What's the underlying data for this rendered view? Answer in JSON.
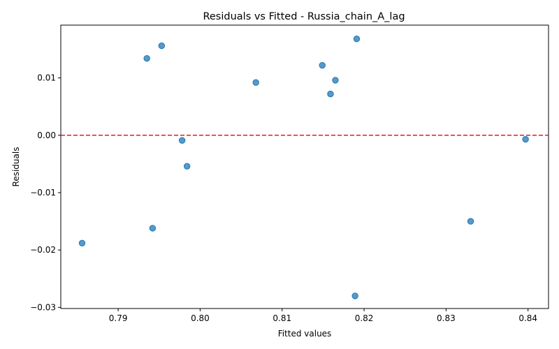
{
  "chart_data": {
    "type": "scatter",
    "title": "Residuals vs Fitted - Russia_chain_A_lag",
    "xlabel": "Fitted values",
    "ylabel": "Residuals",
    "xlim": [
      0.783,
      0.8425
    ],
    "ylim": [
      -0.0302,
      0.0192
    ],
    "xticks": [
      0.79,
      0.8,
      0.81,
      0.82,
      0.83,
      0.84
    ],
    "xtick_labels": [
      "0.79",
      "0.80",
      "0.81",
      "0.82",
      "0.83",
      "0.84"
    ],
    "yticks": [
      -0.03,
      -0.02,
      -0.01,
      0.0,
      0.01
    ],
    "ytick_labels": [
      "−0.03",
      "−0.02",
      "−0.01",
      "0.00",
      "0.01"
    ],
    "reference_line": {
      "y": 0.0,
      "style": "dashed",
      "color": "#e41a1c"
    },
    "grid": false,
    "point_color": "#1f77b4",
    "x": [
      0.7856,
      0.7935,
      0.7942,
      0.7953,
      0.7978,
      0.7984,
      0.8068,
      0.8149,
      0.8159,
      0.8165,
      0.8189,
      0.8191,
      0.833,
      0.8397
    ],
    "y": [
      -0.0188,
      0.0134,
      -0.0162,
      0.0156,
      -0.0009,
      -0.0054,
      0.0092,
      0.0122,
      0.0072,
      0.0096,
      -0.028,
      0.0168,
      -0.015,
      -0.0007
    ]
  }
}
